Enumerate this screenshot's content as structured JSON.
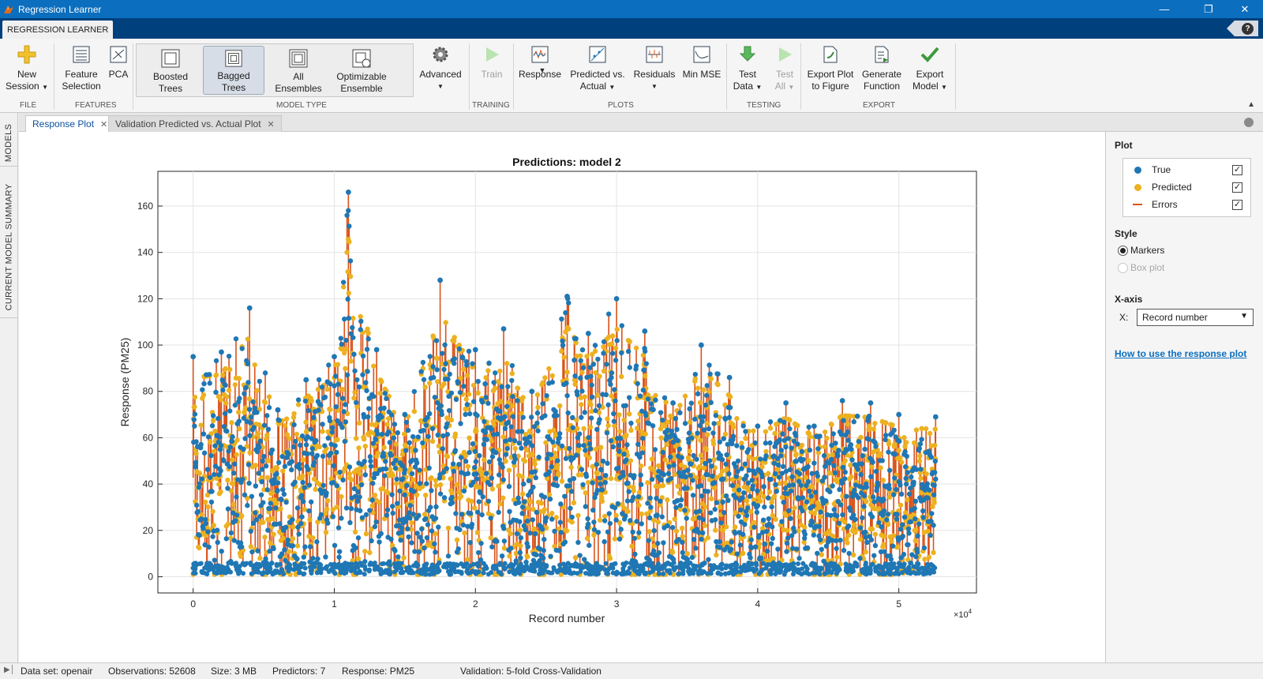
{
  "window": {
    "title": "Regression Learner"
  },
  "ribbon_tab": "REGRESSION LEARNER",
  "ribbon": {
    "file": {
      "label": "FILE",
      "new_session": [
        "New",
        "Session"
      ]
    },
    "features": {
      "label": "FEATURES",
      "feature_selection": [
        "Feature",
        "Selection"
      ],
      "pca": "PCA"
    },
    "model_type": {
      "label": "MODEL TYPE",
      "items": [
        {
          "l1": "Boosted",
          "l2": "Trees"
        },
        {
          "l1": "Bagged",
          "l2": "Trees"
        },
        {
          "l1": "All",
          "l2": "Ensembles"
        },
        {
          "l1": "Optimizable",
          "l2": "Ensemble"
        }
      ],
      "selected": "Bagged Trees",
      "advanced": "Advanced"
    },
    "training": {
      "label": "TRAINING",
      "train": "Train"
    },
    "plots": {
      "label": "PLOTS",
      "response": "Response",
      "predicted_vs_actual": [
        "Predicted vs.",
        "Actual"
      ],
      "residuals": "Residuals",
      "min_mse": "Min MSE"
    },
    "testing": {
      "label": "TESTING",
      "test_data": [
        "Test",
        "Data"
      ],
      "test_all": [
        "Test",
        "All"
      ]
    },
    "export": {
      "label": "EXPORT",
      "export_plot": [
        "Export Plot",
        "to Figure"
      ],
      "generate_function": [
        "Generate",
        "Function"
      ],
      "export_model": [
        "Export",
        "Model"
      ]
    }
  },
  "side_tabs": {
    "models": "MODELS",
    "summary": "CURRENT MODEL SUMMARY"
  },
  "doc_tabs": [
    "Response Plot",
    "Validation Predicted vs. Actual Plot"
  ],
  "chart_data": {
    "type": "scatter",
    "title": "Predictions: model 2",
    "xlabel": "Record number",
    "ylabel": "Response (PM25)",
    "x_exponent_label": "×10",
    "x_exponent": "4",
    "xlim": [
      -0.25,
      5.55
    ],
    "ylim": [
      -7,
      175
    ],
    "x_ticks": [
      0,
      1,
      2,
      3,
      4,
      5
    ],
    "y_ticks": [
      0,
      20,
      40,
      60,
      80,
      100,
      120,
      140,
      160
    ],
    "grid": true,
    "series": [
      {
        "name": "True",
        "color": "#1f77b4",
        "marker": "dot"
      },
      {
        "name": "Predicted",
        "color": "#edb120",
        "marker": "dot"
      },
      {
        "name": "Errors",
        "color": "#d95319",
        "marker": "line"
      }
    ],
    "n_records": 52608,
    "envelope_note_values": {
      "x": [
        0.0,
        0.2,
        0.4,
        0.6,
        0.8,
        1.0,
        1.1,
        1.3,
        1.5,
        1.75,
        2.0,
        2.2,
        2.4,
        2.65,
        2.8,
        3.0,
        3.2,
        3.4,
        3.6,
        3.8,
        4.0,
        4.2,
        4.4,
        4.6,
        4.8,
        5.0,
        5.27
      ],
      "true_max": [
        95,
        97,
        116,
        72,
        85,
        95,
        166,
        98,
        70,
        128,
        98,
        107,
        80,
        121,
        105,
        120,
        106,
        75,
        100,
        86,
        65,
        75,
        65,
        76,
        75,
        70,
        69
      ]
    }
  },
  "right_panel": {
    "plot_header": "Plot",
    "legend": [
      {
        "label": "True",
        "checked": true
      },
      {
        "label": "Predicted",
        "checked": true
      },
      {
        "label": "Errors",
        "checked": true
      }
    ],
    "style_header": "Style",
    "style_options": [
      {
        "label": "Markers",
        "selected": true,
        "enabled": true
      },
      {
        "label": "Box plot",
        "selected": false,
        "enabled": false
      }
    ],
    "xaxis_header": "X-axis",
    "x_label": "X:",
    "x_value": "Record number",
    "help_link": "How to use the response plot"
  },
  "status": {
    "dataset": "Data set: openair",
    "observations": "Observations: 52608",
    "size": "Size: 3 MB",
    "predictors": "Predictors: 7",
    "response": "Response: PM25",
    "validation": "Validation: 5-fold Cross-Validation"
  }
}
